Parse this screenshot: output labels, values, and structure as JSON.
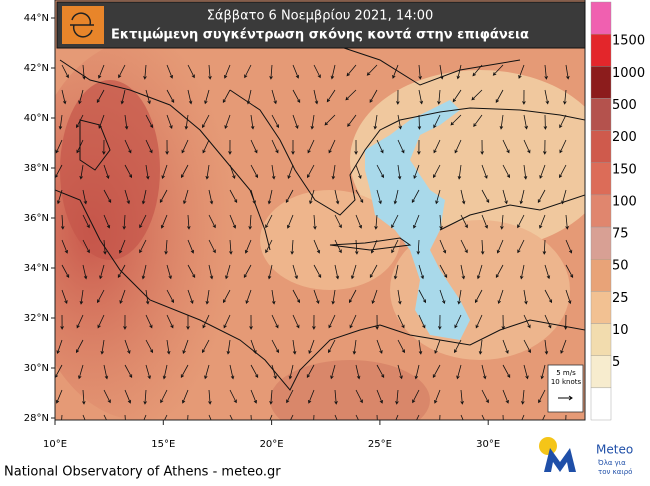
{
  "header": {
    "title": "Σάββατο  6 Νοεμβρίου 2021, 14:00",
    "subtitle": "Εκτιμώμενη συγκέντρωση σκόνης κοντά στην επιφάνεια"
  },
  "map": {
    "lat_labels": [
      "44°N",
      "42°N",
      "40°N",
      "38°N",
      "36°N",
      "34°N",
      "32°N",
      "30°N",
      "28°N"
    ],
    "lon_labels": [
      "10°E",
      "15°E",
      "20°E",
      "25°E",
      "30°E"
    ],
    "wind_legend": {
      "speed": "5 m/s",
      "knots": "10 knots"
    }
  },
  "colorbar": {
    "levels": [
      1500,
      1000,
      500,
      200,
      150,
      100,
      75,
      50,
      25,
      10,
      5
    ],
    "colors": [
      "#f060b0",
      "#e3262b",
      "#8c1c1c",
      "#b4524d",
      "#cf5a4c",
      "#dc6c58",
      "#e0866e",
      "#d8a094",
      "#e8a378",
      "#f2c192",
      "#f2dcae",
      "#f7ecce",
      "#ffffff"
    ]
  },
  "footer": {
    "credit": "National Observatory of Athens - meteo.gr"
  },
  "logo": {
    "name": "Meteo",
    "tagline_1": "Όλα για",
    "tagline_2": "τον καιρό"
  }
}
